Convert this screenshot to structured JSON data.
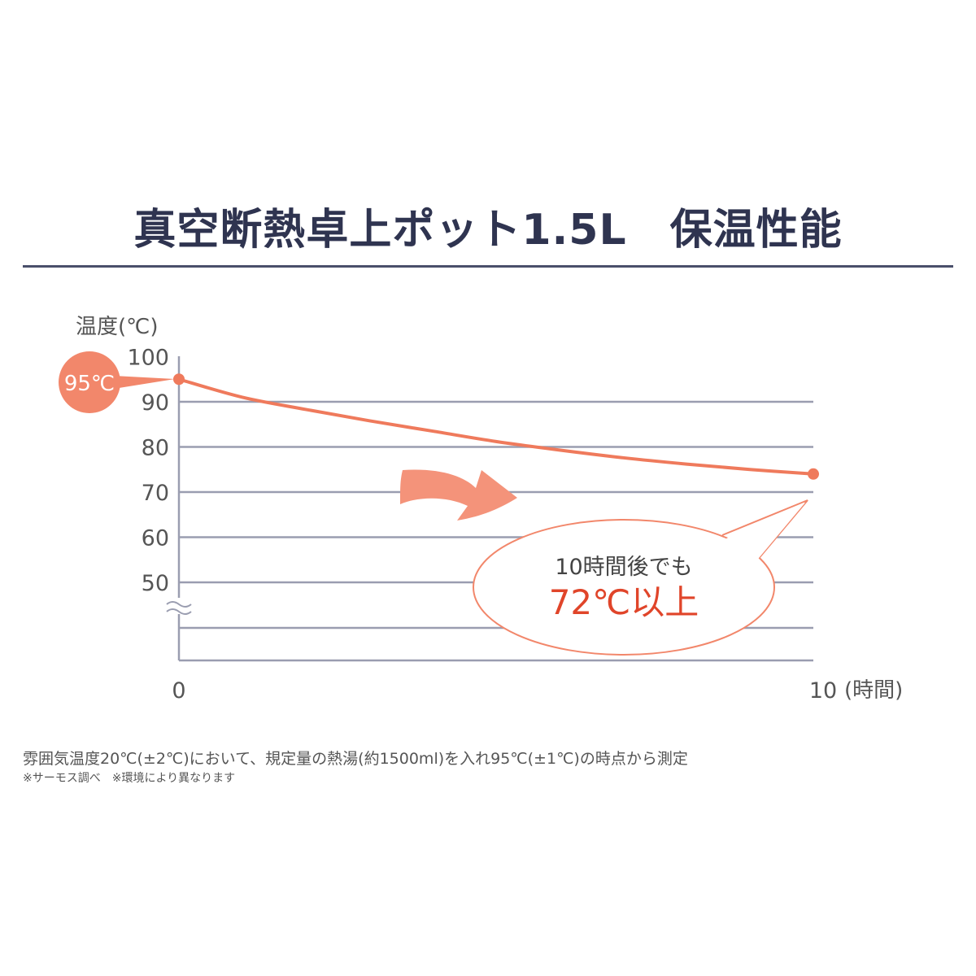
{
  "title": "真空断熱卓上ポット1.5L　保温性能",
  "chart_data": {
    "type": "line",
    "title": "真空断熱卓上ポット1.5L　保温性能",
    "ylabel": "温度(℃)",
    "xlabel": "(時間)",
    "x_ticks": [
      "0",
      "10"
    ],
    "y_ticks": [
      "100",
      "90",
      "80",
      "70",
      "60",
      "50"
    ],
    "ylim": [
      40,
      100
    ],
    "xlim": [
      0,
      10
    ],
    "y_axis_break": true,
    "grid": true,
    "x": [
      0,
      1,
      2,
      3,
      4,
      5,
      6,
      7,
      8,
      9,
      10
    ],
    "values": [
      95,
      91,
      88.3,
      85.8,
      83.5,
      81.2,
      79.3,
      77.6,
      76.2,
      75,
      74
    ],
    "line_color": "#ef7a5c",
    "grid_color": "#9a9db0",
    "start_label": "95℃",
    "callout": {
      "line1": "10時間後でも",
      "line2": "72℃以上",
      "color": "#e0452a"
    }
  },
  "footnote": {
    "main": "雰囲気温度20℃(±2℃)において、規定量の熱湯(約1500ml)を入れ95℃(±1℃)の時点から測定",
    "sub": "※サーモス調べ　※環境により異なります"
  }
}
